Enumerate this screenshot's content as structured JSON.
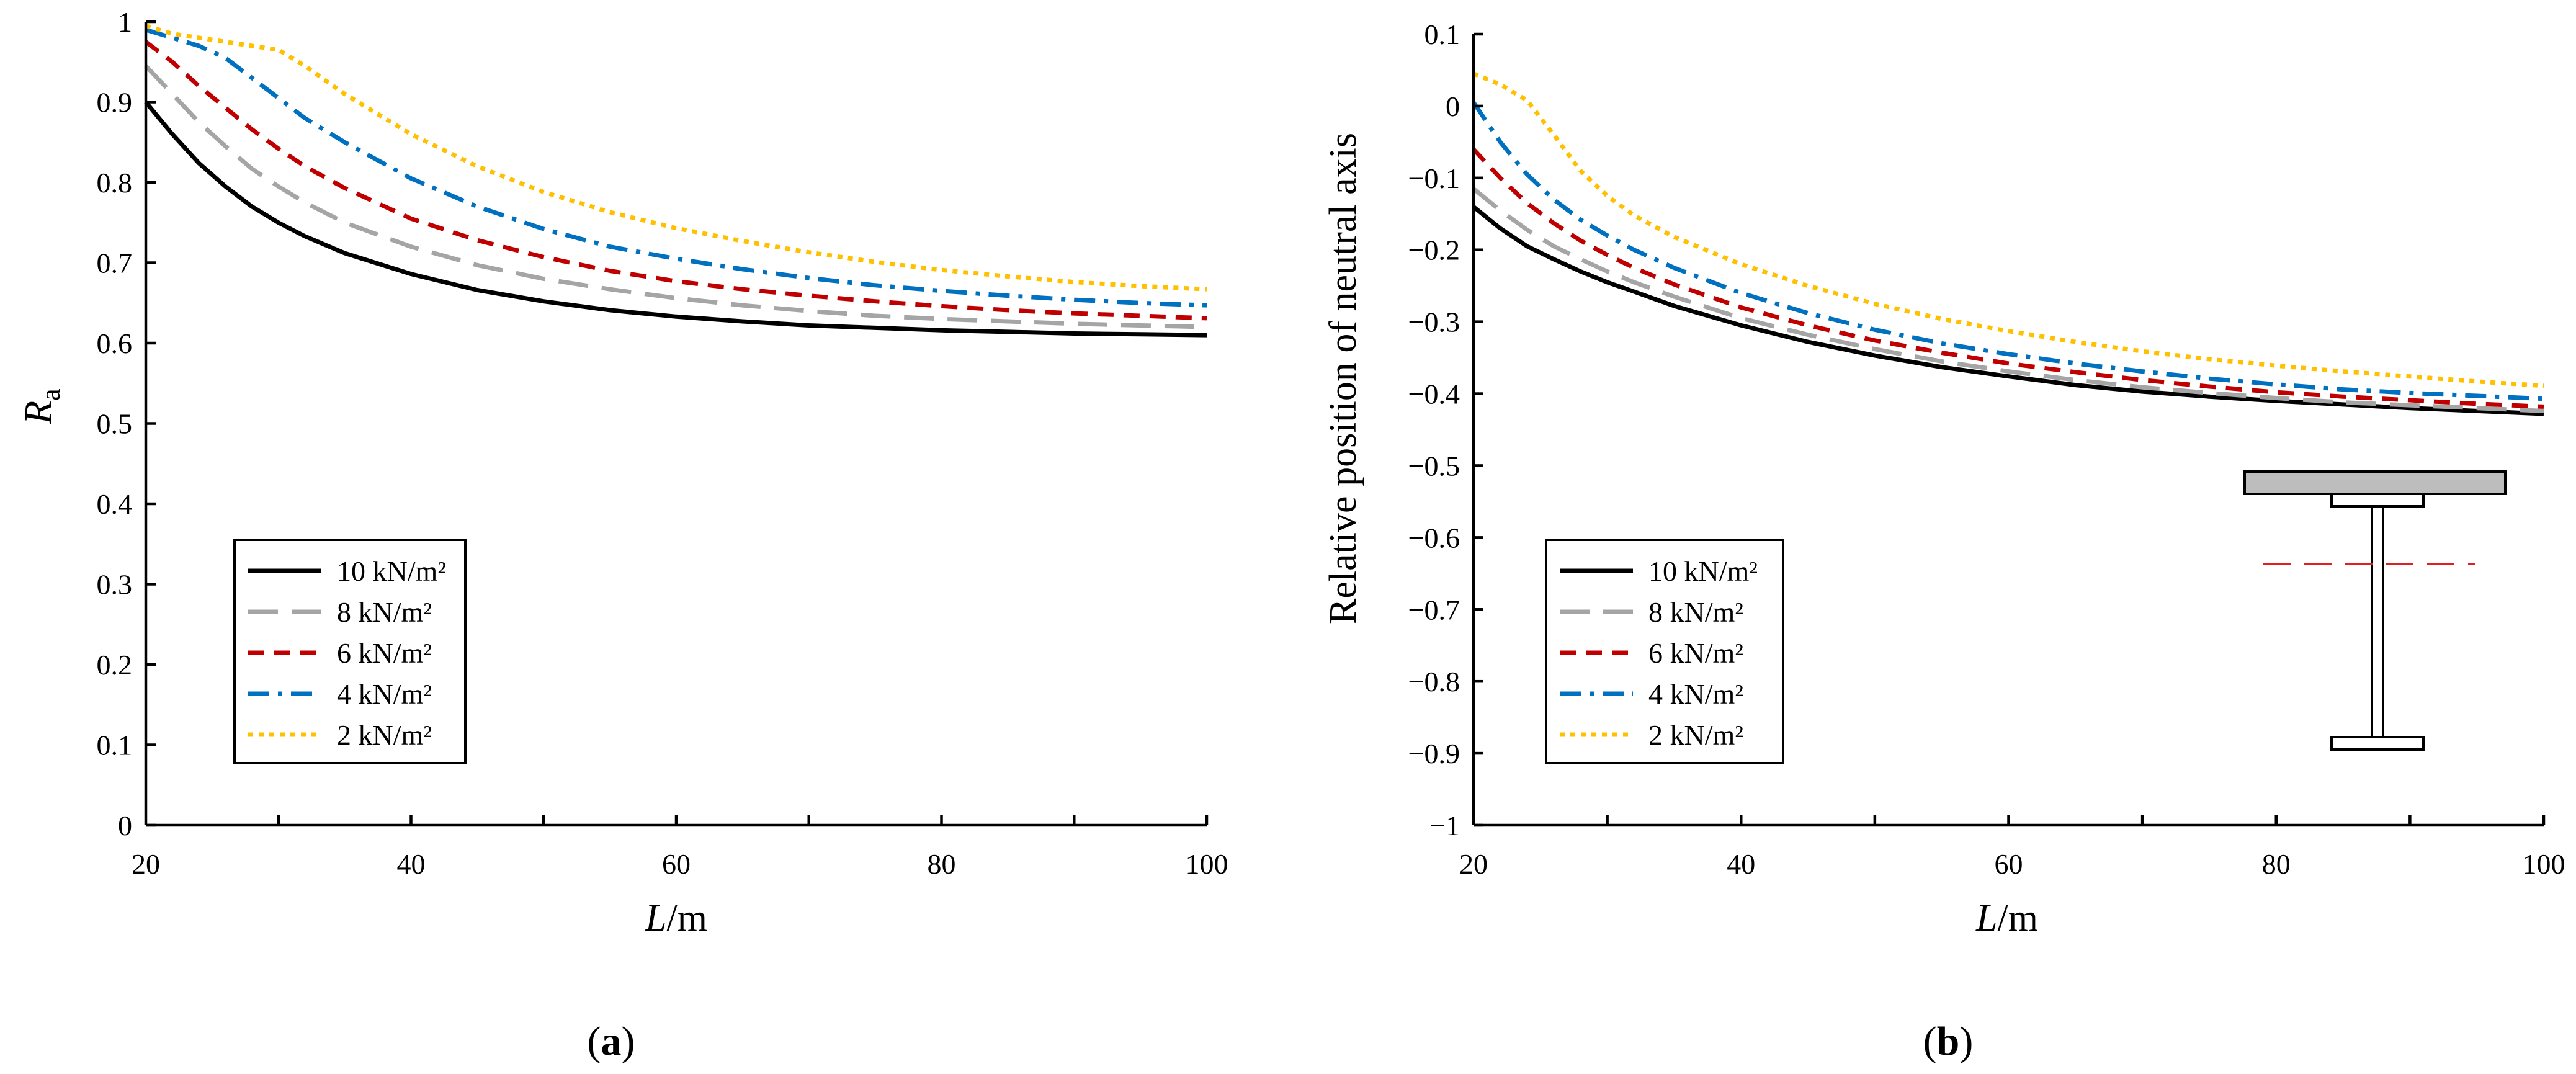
{
  "legend_items": [
    {
      "label": "10 kN/m²",
      "color": "#000000",
      "dash": "solid"
    },
    {
      "label": "8 kN/m²",
      "color": "#A5A5A5",
      "dash": "longdash"
    },
    {
      "label": "6 kN/m²",
      "color": "#C00000",
      "dash": "dash"
    },
    {
      "label": "4 kN/m²",
      "color": "#0070C0",
      "dash": "dashdot"
    },
    {
      "label": "2 kN/m²",
      "color": "#FFC000",
      "dash": "dot"
    }
  ],
  "inset_icon": "steel-composite-girder-section-icon",
  "chart_data": [
    {
      "type": "line",
      "panel": "a",
      "caption_letter": "a",
      "xlabel_italic": "L",
      "xlabel_unit": "/m",
      "ylabel_italic": "R",
      "ylabel_sub": "a",
      "xlim": [
        20,
        100
      ],
      "ylim": [
        0,
        1
      ],
      "xticks": [
        20,
        40,
        60,
        80,
        100
      ],
      "xtick_labels": [
        "20",
        "40",
        "60",
        "80",
        "100"
      ],
      "yticks": [
        0,
        0.1,
        0.2,
        0.3,
        0.4,
        0.5,
        0.6,
        0.7,
        0.8,
        0.9,
        1
      ],
      "ytick_labels": [
        "0",
        "0.1",
        "0.2",
        "0.3",
        "0.4",
        "0.5",
        "0.6",
        "0.7",
        "0.8",
        "0.9",
        "1"
      ],
      "legend_position": "lower-left",
      "x": [
        20,
        22,
        24,
        26,
        28,
        30,
        32,
        35,
        40,
        45,
        50,
        55,
        60,
        65,
        70,
        75,
        80,
        85,
        90,
        95,
        100
      ],
      "series": [
        {
          "name": "10 kN/m²",
          "values": [
            0.9,
            0.86,
            0.824,
            0.795,
            0.77,
            0.75,
            0.733,
            0.712,
            0.686,
            0.666,
            0.652,
            0.641,
            0.633,
            0.627,
            0.622,
            0.619,
            0.616,
            0.614,
            0.612,
            0.611,
            0.61
          ]
        },
        {
          "name": "8 kN/m²",
          "values": [
            0.945,
            0.91,
            0.875,
            0.845,
            0.817,
            0.795,
            0.775,
            0.75,
            0.72,
            0.697,
            0.68,
            0.667,
            0.656,
            0.647,
            0.64,
            0.634,
            0.63,
            0.627,
            0.624,
            0.622,
            0.62
          ]
        },
        {
          "name": "6 kN/m²",
          "values": [
            0.975,
            0.95,
            0.92,
            0.893,
            0.866,
            0.842,
            0.82,
            0.793,
            0.755,
            0.728,
            0.707,
            0.69,
            0.677,
            0.667,
            0.659,
            0.652,
            0.646,
            0.641,
            0.637,
            0.634,
            0.631
          ]
        },
        {
          "name": "4 kN/m²",
          "values": [
            0.99,
            0.98,
            0.97,
            0.955,
            0.93,
            0.905,
            0.88,
            0.85,
            0.805,
            0.77,
            0.742,
            0.72,
            0.705,
            0.692,
            0.681,
            0.672,
            0.665,
            0.659,
            0.654,
            0.65,
            0.647
          ]
        },
        {
          "name": "2 kN/m²",
          "values": [
            0.995,
            0.985,
            0.98,
            0.975,
            0.97,
            0.965,
            0.945,
            0.91,
            0.86,
            0.82,
            0.788,
            0.763,
            0.743,
            0.727,
            0.713,
            0.701,
            0.691,
            0.683,
            0.676,
            0.671,
            0.667
          ]
        }
      ]
    },
    {
      "type": "line",
      "panel": "b",
      "caption_letter": "b",
      "xlabel_italic": "L",
      "xlabel_unit": "/m",
      "ylabel": "Relative position of neutral axis",
      "xlim": [
        20,
        100
      ],
      "ylim": [
        -1,
        0.1
      ],
      "xticks": [
        20,
        40,
        60,
        80,
        100
      ],
      "xtick_labels": [
        "20",
        "40",
        "60",
        "80",
        "100"
      ],
      "yticks": [
        0.1,
        0,
        -0.1,
        -0.2,
        -0.3,
        -0.4,
        -0.5,
        -0.6,
        -0.7,
        -0.8,
        -0.9,
        -1
      ],
      "ytick_labels": [
        "0.1",
        "0",
        "−0.1",
        "−0.2",
        "−0.3",
        "−0.4",
        "−0.5",
        "−0.6",
        "−0.7",
        "−0.8",
        "−0.9",
        "−1"
      ],
      "legend_position": "lower-left",
      "x": [
        20,
        22,
        24,
        26,
        28,
        30,
        32,
        35,
        40,
        45,
        50,
        55,
        60,
        65,
        70,
        75,
        80,
        85,
        90,
        95,
        100
      ],
      "series": [
        {
          "name": "10 kN/m²",
          "values": [
            -0.14,
            -0.17,
            -0.195,
            -0.213,
            -0.23,
            -0.245,
            -0.258,
            -0.278,
            -0.305,
            -0.328,
            -0.347,
            -0.363,
            -0.376,
            -0.388,
            -0.397,
            -0.404,
            -0.41,
            -0.415,
            -0.42,
            -0.424,
            -0.428
          ]
        },
        {
          "name": "8 kN/m²",
          "values": [
            -0.115,
            -0.145,
            -0.172,
            -0.195,
            -0.213,
            -0.23,
            -0.245,
            -0.265,
            -0.295,
            -0.318,
            -0.338,
            -0.355,
            -0.369,
            -0.381,
            -0.391,
            -0.399,
            -0.406,
            -0.412,
            -0.416,
            -0.42,
            -0.424
          ]
        },
        {
          "name": "6 kN/m²",
          "values": [
            -0.06,
            -0.1,
            -0.135,
            -0.163,
            -0.187,
            -0.207,
            -0.225,
            -0.248,
            -0.28,
            -0.305,
            -0.326,
            -0.343,
            -0.358,
            -0.37,
            -0.381,
            -0.39,
            -0.398,
            -0.404,
            -0.409,
            -0.414,
            -0.418
          ]
        },
        {
          "name": "4 kN/m²",
          "values": [
            0.005,
            -0.05,
            -0.095,
            -0.13,
            -0.158,
            -0.18,
            -0.2,
            -0.225,
            -0.26,
            -0.288,
            -0.311,
            -0.33,
            -0.345,
            -0.358,
            -0.369,
            -0.379,
            -0.387,
            -0.394,
            -0.399,
            -0.403,
            -0.407
          ]
        },
        {
          "name": "2 kN/m²",
          "values": [
            0.045,
            0.03,
            0.008,
            -0.04,
            -0.09,
            -0.125,
            -0.152,
            -0.182,
            -0.22,
            -0.25,
            -0.275,
            -0.296,
            -0.313,
            -0.328,
            -0.341,
            -0.352,
            -0.361,
            -0.369,
            -0.376,
            -0.383,
            -0.389
          ]
        }
      ]
    }
  ]
}
